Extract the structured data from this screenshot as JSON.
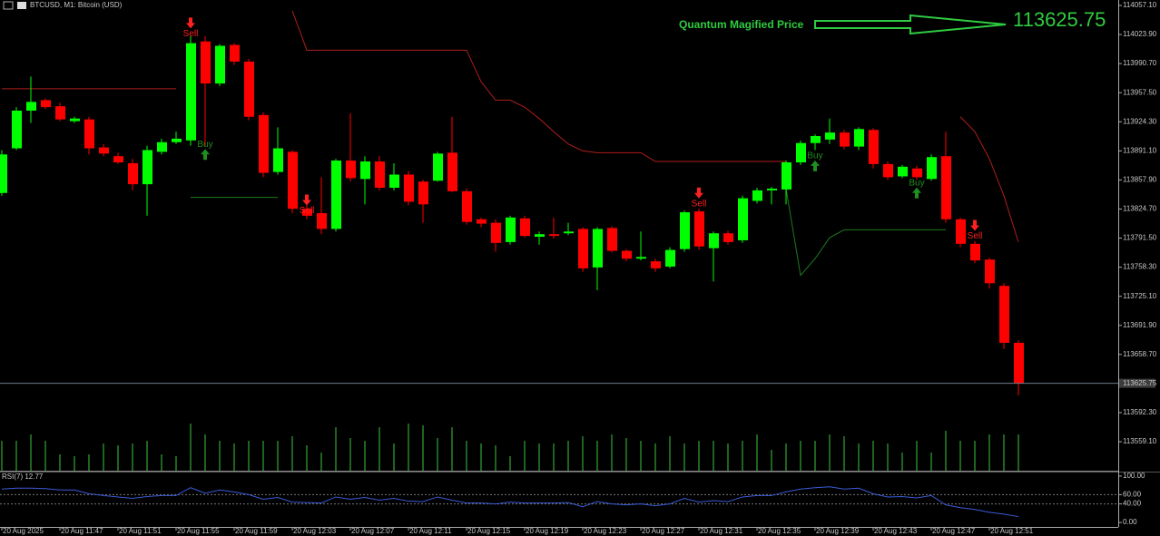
{
  "chart_data": [
    {
      "type": "candlestick",
      "title": "BTCUSD, M1: Bitcoin (USD)",
      "annotation": "Quantum Magified Price",
      "categories": [
        "20 Aug 2025",
        null,
        null,
        null,
        "20 Aug 11:47",
        null,
        null,
        null,
        "20 Aug 11:51",
        null,
        null,
        null,
        "20 Aug 11:55",
        null,
        null,
        null,
        "20 Aug 11:59",
        null,
        null,
        null,
        "20 Aug 12:03",
        null,
        null,
        null,
        "20 Aug 12:07",
        null,
        null,
        null,
        "20 Aug 12:11",
        null,
        null,
        null,
        "20 Aug 12:15",
        null,
        null,
        null,
        "20 Aug 12:19",
        null,
        null,
        null,
        "20 Aug 12:23",
        null,
        null,
        null,
        "20 Aug 12:27",
        null,
        null,
        null,
        "20 Aug 12:31",
        null,
        null,
        null,
        "20 Aug 12:35",
        null,
        null,
        null,
        "20 Aug 12:39",
        null,
        null,
        null,
        "20 Aug 12:43",
        null,
        null,
        null,
        "20 Aug 12:47",
        null,
        null,
        null,
        "20 Aug 12:51",
        null,
        null
      ],
      "open": [
        113843,
        113894,
        113937,
        113949,
        113942,
        113925,
        113927,
        113895,
        113885,
        113877,
        113853,
        113890,
        113901,
        113903,
        114016,
        113968,
        114012,
        113993,
        113932,
        113867,
        113890,
        113825,
        113820,
        113802,
        113880,
        113859,
        113879,
        113849,
        113864,
        113856,
        113857,
        113889,
        113845,
        113813,
        113809,
        113787,
        113814,
        113793,
        113796,
        113797,
        113802,
        113758,
        113803,
        113777,
        113768,
        113765,
        113759,
        113779,
        113822,
        113780,
        113797,
        113789,
        113834,
        113846,
        113847,
        113878,
        113900,
        113904,
        113912,
        113896,
        113915,
        113876,
        113862,
        113871,
        113859,
        113885,
        113813,
        113785,
        113767,
        113737,
        113672
      ],
      "high": [
        113892,
        113941,
        113976,
        113951,
        113946,
        113930,
        113930,
        113899,
        113889,
        113882,
        113897,
        113905,
        113913,
        114022,
        114022,
        114013,
        114014,
        113996,
        113935,
        113918,
        113892,
        113830,
        113861,
        113882,
        113934,
        113885,
        113885,
        113877,
        113868,
        113858,
        113890,
        113930,
        113848,
        113815,
        113813,
        113817,
        113817,
        113799,
        113815,
        113809,
        113804,
        113804,
        113805,
        113779,
        113799,
        113768,
        113781,
        113823,
        113825,
        113799,
        113800,
        113840,
        113849,
        113850,
        113880,
        113903,
        113910,
        113928,
        113915,
        113918,
        113917,
        113879,
        113875,
        113874,
        113887,
        113913,
        113815,
        113788,
        113769,
        113740,
        113675
      ],
      "low": [
        113840,
        113892,
        113923,
        113939,
        113925,
        113923,
        113887,
        113885,
        113876,
        113846,
        113817,
        113887,
        113899,
        113897,
        113897,
        113965,
        113989,
        113926,
        113861,
        113864,
        113820,
        113813,
        113796,
        113799,
        113856,
        113830,
        113846,
        113846,
        113829,
        113809,
        113856,
        113844,
        113807,
        113804,
        113776,
        113784,
        113792,
        113784,
        113791,
        113795,
        113753,
        113732,
        113775,
        113765,
        113766,
        113753,
        113757,
        113776,
        113778,
        113742,
        113784,
        113786,
        113831,
        113830,
        113830,
        113875,
        113892,
        113899,
        113893,
        113892,
        113871,
        113858,
        113860,
        113858,
        113857,
        113809,
        113781,
        113763,
        113734,
        113665,
        113612
      ],
      "close": [
        113887,
        113937,
        113947,
        113941,
        113927,
        113928,
        113894,
        113888,
        113878,
        113853,
        113892,
        113901,
        113905,
        114014,
        113968,
        114011,
        113993,
        113930,
        113866,
        113894,
        113825,
        113817,
        113802,
        113880,
        113860,
        113879,
        113849,
        113864,
        113833,
        113830,
        113888,
        113845,
        113810,
        113808,
        113786,
        113815,
        113794,
        113796,
        113794,
        113799,
        113757,
        113802,
        113777,
        113768,
        113770,
        113757,
        113778,
        113821,
        113782,
        113797,
        113787,
        113837,
        113846,
        113848,
        113878,
        113900,
        113908,
        113912,
        113896,
        113916,
        113876,
        113861,
        113873,
        113861,
        113884,
        113813,
        113785,
        113766,
        113740,
        113672,
        113625.75
      ],
      "up_color": "#00ff00",
      "down_color": "#ff0000",
      "ylim": [
        113526.0,
        114063.3
      ],
      "yticks": [
        {
          "value": 114057.1,
          "label": "114057.10"
        },
        {
          "value": 114023.9,
          "label": "114023.90"
        },
        {
          "value": 113990.7,
          "label": "113990.70"
        },
        {
          "value": 113957.5,
          "label": "113957.50"
        },
        {
          "value": 113924.3,
          "label": "113924.30"
        },
        {
          "value": 113891.1,
          "label": "113891.10"
        },
        {
          "value": 113857.9,
          "label": "113857.90"
        },
        {
          "value": 113824.7,
          "label": "113824.70"
        },
        {
          "value": 113791.5,
          "label": "113791.50"
        },
        {
          "value": 113758.3,
          "label": "113758.30"
        },
        {
          "value": 113725.1,
          "label": "113725.10"
        },
        {
          "value": 113691.9,
          "label": "113691.90"
        },
        {
          "value": 113658.7,
          "label": "113658.70"
        },
        {
          "value": 113592.3,
          "label": "113592.30"
        },
        {
          "value": 113559.1,
          "label": "113559.10"
        }
      ],
      "current_price": 113625.75,
      "overlays": [
        {
          "color": "#b01e1e",
          "values": [
            113962,
            113962,
            113962,
            113962,
            113962,
            113962,
            113962,
            113962,
            113962,
            113962,
            113962,
            113962,
            113962,
            null,
            null,
            null,
            null,
            null,
            null,
            null,
            114051,
            114006,
            114006,
            114006,
            114006,
            114006,
            114006,
            114006,
            114006,
            114006,
            114006,
            114006,
            114006,
            113970,
            113949,
            113949,
            113941,
            113928,
            113913,
            113899,
            113891,
            113889,
            113889,
            113889,
            113889,
            113879,
            113879,
            113879,
            113879,
            113879,
            113879,
            113879,
            113879,
            113879,
            113879,
            null,
            null,
            null,
            null,
            null,
            null,
            null,
            null,
            null,
            null,
            null,
            113930,
            113913,
            113882,
            113840,
            113787
          ]
        },
        {
          "color": "#1e7a1e",
          "values": [
            null,
            null,
            null,
            null,
            null,
            null,
            null,
            null,
            null,
            null,
            null,
            null,
            null,
            113838,
            113838,
            113838,
            113838,
            113838,
            113838,
            113838,
            null,
            null,
            null,
            null,
            null,
            null,
            null,
            null,
            null,
            null,
            null,
            null,
            null,
            null,
            null,
            null,
            null,
            null,
            null,
            null,
            null,
            null,
            null,
            null,
            null,
            null,
            null,
            null,
            null,
            null,
            null,
            null,
            null,
            null,
            113848,
            113749,
            113768,
            113792,
            113801,
            113801,
            113801,
            113801,
            113801,
            113801,
            113801,
            113801,
            null,
            null,
            null,
            null,
            null
          ]
        }
      ],
      "signals": [
        {
          "name": "Sell",
          "color": "#ff2020",
          "values": [
            null,
            null,
            null,
            null,
            null,
            null,
            null,
            null,
            null,
            null,
            null,
            null,
            null,
            114037,
            null,
            null,
            null,
            null,
            null,
            null,
            null,
            113835,
            null,
            null,
            null,
            null,
            null,
            null,
            null,
            null,
            null,
            null,
            null,
            null,
            null,
            null,
            null,
            null,
            null,
            null,
            null,
            null,
            null,
            null,
            null,
            null,
            null,
            null,
            113843,
            null,
            null,
            null,
            null,
            null,
            null,
            null,
            null,
            null,
            null,
            null,
            null,
            null,
            null,
            null,
            null,
            null,
            null,
            113806,
            null,
            null,
            null
          ]
        },
        {
          "name": "Buy",
          "color": "#1f8f1f",
          "values": [
            null,
            null,
            null,
            null,
            null,
            null,
            null,
            null,
            null,
            null,
            null,
            null,
            null,
            null,
            113887,
            null,
            null,
            null,
            null,
            null,
            null,
            null,
            null,
            null,
            null,
            null,
            null,
            null,
            null,
            null,
            null,
            null,
            null,
            null,
            null,
            null,
            null,
            null,
            null,
            null,
            null,
            null,
            null,
            null,
            null,
            null,
            null,
            null,
            null,
            null,
            null,
            null,
            null,
            null,
            null,
            null,
            113874,
            null,
            null,
            null,
            null,
            null,
            null,
            113843,
            null,
            null,
            null,
            null,
            null,
            null,
            null
          ]
        }
      ]
    },
    {
      "type": "bar",
      "color": "#3cc83c",
      "ylim": [
        0,
        60
      ],
      "values": [
        33,
        33,
        40,
        33,
        18,
        16,
        18,
        30,
        28,
        30,
        33,
        18,
        16,
        52,
        40,
        33,
        30,
        33,
        33,
        33,
        38,
        28,
        20,
        48,
        36,
        33,
        48,
        30,
        52,
        50,
        36,
        48,
        33,
        30,
        28,
        16,
        33,
        30,
        30,
        33,
        38,
        33,
        40,
        36,
        33,
        30,
        38,
        30,
        33,
        33,
        30,
        33,
        40,
        23,
        30,
        33,
        33,
        40,
        38,
        30,
        33,
        30,
        20,
        33,
        20,
        44,
        33,
        33,
        40,
        40,
        40
      ]
    },
    {
      "type": "line",
      "title": "RSI(7) 12.77",
      "color": "#3b5bd6",
      "ylim": [
        -9.6,
        107.7
      ],
      "yticks": [
        {
          "value": 100,
          "label": "100.00"
        },
        {
          "value": 60,
          "label": "60.00"
        },
        {
          "value": 40,
          "label": "40.00"
        },
        {
          "value": 0,
          "label": "0.00"
        }
      ],
      "levels": [
        60,
        40
      ],
      "values": [
        72,
        74,
        74,
        73,
        70,
        70,
        62,
        58,
        55,
        52,
        56,
        58,
        58,
        75,
        63,
        70,
        66,
        60,
        50,
        54,
        44,
        43,
        42,
        55,
        50,
        54,
        48,
        52,
        46,
        45,
        55,
        48,
        42,
        42,
        40,
        44,
        42,
        42,
        42,
        43,
        34,
        45,
        40,
        38,
        40,
        36,
        40,
        52,
        44,
        47,
        45,
        55,
        58,
        58,
        66,
        72,
        75,
        77,
        72,
        74,
        62,
        55,
        56,
        53,
        58,
        38,
        32,
        28,
        22,
        18,
        12.77
      ]
    }
  ]
}
